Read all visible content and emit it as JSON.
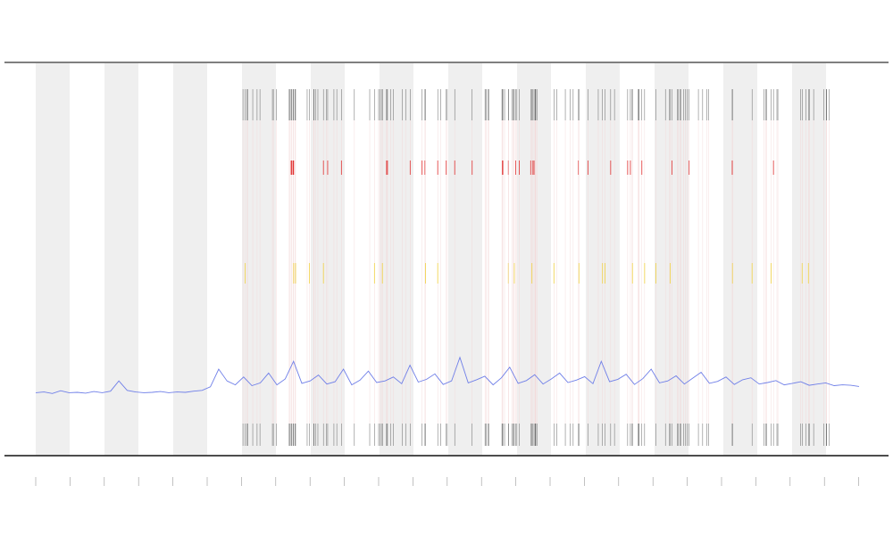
{
  "chart_data": {
    "type": "line",
    "ylim": [
      0,
      100
    ],
    "series": [
      {
        "color": "#6f7fe8",
        "values": [
          16,
          16.2,
          15.8,
          16.5,
          16,
          16.1,
          15.9,
          16.3,
          16,
          16.4,
          19,
          16.6,
          16.2,
          16,
          16.1,
          16.3,
          16,
          16.2,
          16.1,
          16.4,
          16.6,
          17.5,
          22,
          19,
          18,
          20,
          17.8,
          18.5,
          21,
          18,
          19.5,
          24,
          18.4,
          19,
          20.5,
          18.2,
          18.8,
          22,
          18,
          19.2,
          21.5,
          18.6,
          19,
          20,
          18.3,
          23,
          18.7,
          19.4,
          20.8,
          18.1,
          19,
          25,
          18.5,
          19.3,
          20.2,
          18,
          19.8,
          22.5,
          18.4,
          19.1,
          20.6,
          18.2,
          19.5,
          21,
          18.6,
          19.2,
          20.1,
          18.3,
          24,
          18.8,
          19.4,
          20.7,
          18.1,
          19.6,
          22,
          18.5,
          19,
          20.3,
          18.2,
          19.7,
          21.2,
          18.4,
          18.9,
          20,
          18.1,
          19.3,
          19.8,
          18.2,
          18.6,
          19.1,
          18,
          18.4,
          18.8,
          17.9,
          18.2,
          18.5,
          17.8,
          18,
          17.9,
          17.6
        ]
      }
    ]
  }
}
